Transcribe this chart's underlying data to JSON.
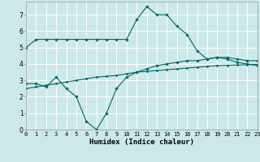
{
  "xlabel": "Humidex (Indice chaleur)",
  "ylabel": "",
  "bg_color": "#cce8e8",
  "grid_color": "#ffffff",
  "line_color": "#006666",
  "x_ticks": [
    0,
    1,
    2,
    3,
    4,
    5,
    6,
    7,
    8,
    9,
    10,
    11,
    12,
    13,
    14,
    15,
    16,
    17,
    18,
    19,
    20,
    21,
    22,
    23
  ],
  "y_ticks": [
    0,
    1,
    2,
    3,
    4,
    5,
    6,
    7
  ],
  "xlim": [
    0,
    23
  ],
  "ylim": [
    0,
    7.8
  ],
  "line1_x": [
    0,
    1,
    2,
    3,
    4,
    5,
    6,
    7,
    8,
    9,
    10,
    11,
    12,
    13,
    14,
    15,
    16,
    17,
    18,
    19,
    20,
    21,
    22,
    23
  ],
  "line1_y": [
    5.0,
    5.5,
    5.5,
    5.5,
    5.5,
    5.5,
    5.5,
    5.5,
    5.5,
    5.5,
    5.5,
    6.7,
    7.5,
    7.0,
    7.0,
    6.3,
    5.8,
    4.8,
    4.3,
    4.4,
    4.4,
    4.3,
    4.2,
    4.2
  ],
  "line2_x": [
    0,
    1,
    2,
    3,
    4,
    5,
    6,
    7,
    8,
    9,
    10,
    11,
    12,
    13,
    14,
    15,
    16,
    17,
    18,
    19,
    20,
    21,
    22,
    23
  ],
  "line2_y": [
    2.8,
    2.8,
    2.6,
    3.2,
    2.5,
    2.0,
    0.5,
    0.0,
    1.0,
    2.5,
    3.2,
    3.5,
    3.7,
    3.9,
    4.0,
    4.1,
    4.2,
    4.2,
    4.3,
    4.4,
    4.3,
    4.1,
    4.0,
    3.9
  ],
  "line3_x": [
    0,
    1,
    2,
    3,
    4,
    5,
    6,
    7,
    8,
    9,
    10,
    11,
    12,
    13,
    14,
    15,
    16,
    17,
    18,
    19,
    20,
    21,
    22,
    23
  ],
  "line3_y": [
    2.5,
    2.6,
    2.7,
    2.8,
    2.9,
    3.0,
    3.1,
    3.2,
    3.25,
    3.3,
    3.4,
    3.5,
    3.55,
    3.6,
    3.65,
    3.7,
    3.75,
    3.8,
    3.85,
    3.9,
    3.92,
    3.94,
    3.96,
    3.97
  ],
  "tick_fontsize": 5.0,
  "xlabel_fontsize": 6.5
}
